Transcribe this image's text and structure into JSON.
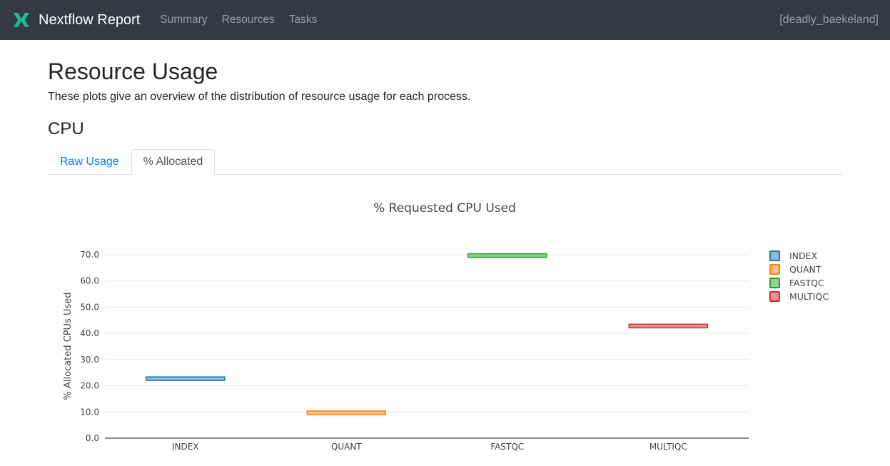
{
  "navbar": {
    "brand": "Nextflow Report",
    "items": [
      {
        "label": "Summary"
      },
      {
        "label": "Resources"
      },
      {
        "label": "Tasks"
      }
    ],
    "run_name": "[deadly_baekeland]",
    "colors": {
      "bg": "#343a40",
      "brand_teal_light": "#2cc98f",
      "brand_teal_dark": "#13b0a0"
    }
  },
  "page": {
    "title": "Resource Usage",
    "subtitle": "These plots give an overview of the distribution of resource usage for each process.",
    "section_heading": "CPU"
  },
  "tabs": [
    {
      "label": "Raw Usage",
      "active": false
    },
    {
      "label": "% Allocated",
      "active": true
    }
  ],
  "chart_data": {
    "type": "box",
    "title": "% Requested CPU Used",
    "xlabel": "",
    "ylabel": "% Allocated CPUs Used",
    "categories": [
      "INDEX",
      "QUANT",
      "FASTQC",
      "MULTIQC"
    ],
    "series": [
      {
        "name": "INDEX",
        "color": "#1f77b4",
        "value": 22.7
      },
      {
        "name": "QUANT",
        "color": "#ff7f0e",
        "value": 9.7
      },
      {
        "name": "FASTQC",
        "color": "#2ca02c",
        "value": 69.7
      },
      {
        "name": "MULTIQC",
        "color": "#d62728",
        "value": 42.8
      }
    ],
    "ylim": [
      0,
      70
    ],
    "ytick_step": 10,
    "ytick_labels": [
      "0.0",
      "10.0",
      "20.0",
      "30.0",
      "40.0",
      "50.0",
      "60.0",
      "70.0"
    ],
    "grid": true,
    "legend_position": "right",
    "text_color": "#444444",
    "grid_color": "#e8e8e8",
    "axis_line_color": "#888888"
  }
}
